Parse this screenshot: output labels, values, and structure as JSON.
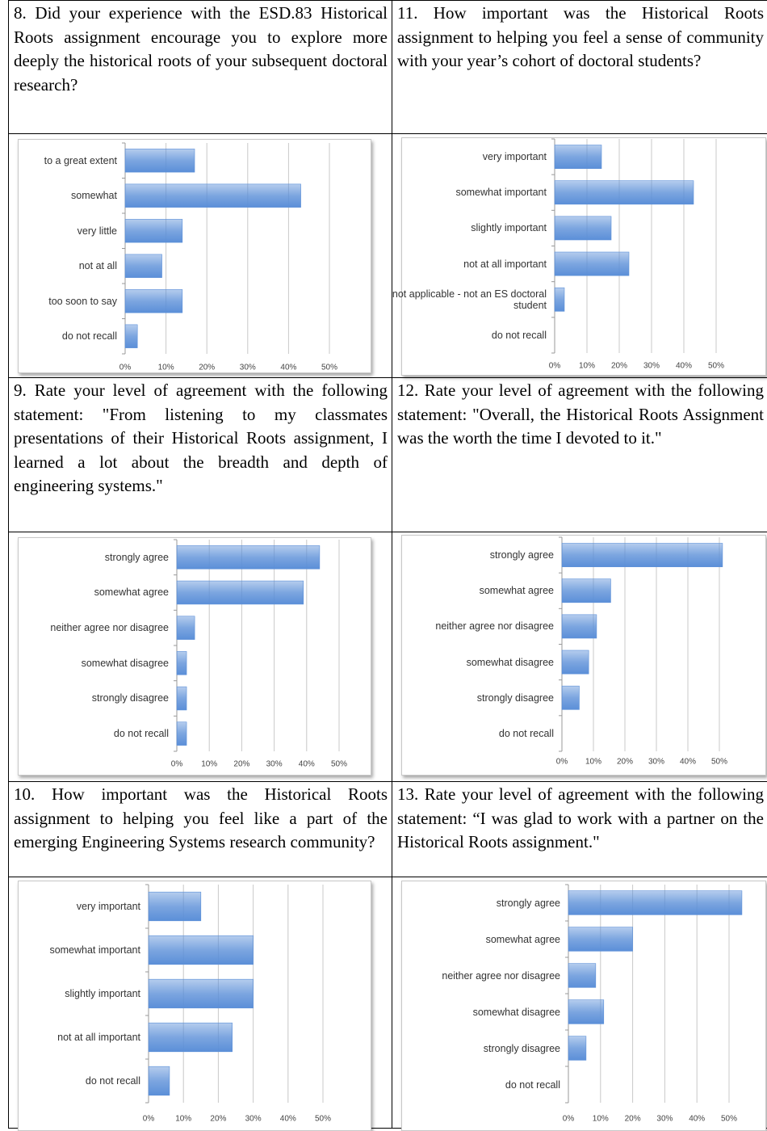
{
  "cells": [
    {
      "question": "8. Did your experience with the ESD.83 Historical Roots assignment encourage you to explore more deeply the historical roots of your subsequent doctoral research?"
    },
    {
      "question": "11. How important was the Historical Roots assignment to helping you feel a sense of community with your year’s cohort of doctoral students?"
    },
    {
      "question": "9. Rate your level of agreement with the following statement: \"From listening to my classmates presentations of their Historical Roots assignment, I learned a lot about the breadth and depth of engineering systems.\""
    },
    {
      "question": "12. Rate your level of agreement with the following statement: \"Overall, the Historical Roots Assignment was the worth the time I devoted to it.\""
    },
    {
      "question": "10. How important was the Historical Roots assignment to helping you feel like a part of the emerging Engineering Systems research community?"
    },
    {
      "question": "13. Rate your level of agreement with the following statement: “I was glad to work with a partner on the Historical Roots assignment.\""
    }
  ],
  "chart_data": [
    {
      "type": "bar",
      "orientation": "horizontal",
      "color": "#5b8fd8",
      "grid": true,
      "categories": [
        "to a great extent",
        "somewhat",
        "very little",
        "not at all",
        "too soon to say",
        "do not recall"
      ],
      "values": [
        17,
        43,
        14,
        9,
        14,
        3
      ],
      "xlim": [
        0,
        55
      ],
      "xticks": [
        {
          "value": 0,
          "label": "0%"
        },
        {
          "value": 10,
          "label": "10%"
        },
        {
          "value": 20,
          "label": "20%"
        },
        {
          "value": 30,
          "label": "30%"
        },
        {
          "value": 40,
          "label": "40%"
        },
        {
          "value": 50,
          "label": "50%"
        }
      ]
    },
    {
      "type": "bar",
      "orientation": "horizontal",
      "color": "#5b8fd8",
      "grid": true,
      "categories": [
        "very important",
        "somewhat important",
        "slightly important",
        "not at all important",
        "not applicable - not an ES doctoral student",
        "do not recall"
      ],
      "values": [
        14.5,
        43,
        17.5,
        23,
        3,
        0
      ],
      "xlim": [
        0,
        55
      ],
      "xticks": [
        {
          "value": 0,
          "label": "0%"
        },
        {
          "value": 10,
          "label": "10%"
        },
        {
          "value": 20,
          "label": "20%"
        },
        {
          "value": 30,
          "label": "30%"
        },
        {
          "value": 40,
          "label": "40%"
        },
        {
          "value": 50,
          "label": "50%"
        }
      ]
    },
    {
      "type": "bar",
      "orientation": "horizontal",
      "color": "#5b8fd8",
      "grid": true,
      "categories": [
        "strongly agree",
        "somewhat agree",
        "neither agree nor disagree",
        "somewhat disagree",
        "strongly disagree",
        "do not recall"
      ],
      "values": [
        44,
        39,
        5.5,
        3,
        3,
        3
      ],
      "xlim": [
        0,
        55
      ],
      "xticks": [
        {
          "value": 0,
          "label": "0%"
        },
        {
          "value": 10,
          "label": "10%"
        },
        {
          "value": 20,
          "label": "20%"
        },
        {
          "value": 30,
          "label": "30%"
        },
        {
          "value": 40,
          "label": "40%"
        },
        {
          "value": 50,
          "label": "50%"
        }
      ]
    },
    {
      "type": "bar",
      "orientation": "horizontal",
      "color": "#5b8fd8",
      "grid": true,
      "categories": [
        "strongly agree",
        "somewhat agree",
        "neither agree nor disagree",
        "somewhat disagree",
        "strongly disagree",
        "do not recall"
      ],
      "values": [
        51,
        15.5,
        11,
        8.5,
        5.5,
        0
      ],
      "xlim": [
        0,
        55
      ],
      "xticks": [
        {
          "value": 0,
          "label": "0%"
        },
        {
          "value": 10,
          "label": "10%"
        },
        {
          "value": 20,
          "label": "20%"
        },
        {
          "value": 30,
          "label": "30%"
        },
        {
          "value": 40,
          "label": "40%"
        },
        {
          "value": 50,
          "label": "50%"
        }
      ]
    },
    {
      "type": "bar",
      "orientation": "horizontal",
      "color": "#5b8fd8",
      "grid": true,
      "categories": [
        "very important",
        "somewhat important",
        "slightly important",
        "not at all important",
        "do not recall"
      ],
      "values": [
        15,
        30,
        30,
        24,
        6
      ],
      "xlim": [
        0,
        55
      ],
      "xticks": [
        {
          "value": 0,
          "label": "0%"
        },
        {
          "value": 10,
          "label": "10%"
        },
        {
          "value": 20,
          "label": "20%"
        },
        {
          "value": 30,
          "label": "30%"
        },
        {
          "value": 40,
          "label": "40%"
        },
        {
          "value": 50,
          "label": "50%"
        }
      ]
    },
    {
      "type": "bar",
      "orientation": "horizontal",
      "color": "#5b8fd8",
      "grid": true,
      "categories": [
        "strongly agree",
        "somewhat agree",
        "neither agree nor disagree",
        "somewhat disagree",
        "strongly disagree",
        "do not recall"
      ],
      "values": [
        54,
        20,
        8.5,
        11,
        5.5,
        0
      ],
      "xlim": [
        0,
        55
      ],
      "xticks": [
        {
          "value": 0,
          "label": "0%"
        },
        {
          "value": 10,
          "label": "10%"
        },
        {
          "value": 20,
          "label": "20%"
        },
        {
          "value": 30,
          "label": "30%"
        },
        {
          "value": 40,
          "label": "40%"
        },
        {
          "value": 50,
          "label": "50%"
        }
      ]
    }
  ]
}
